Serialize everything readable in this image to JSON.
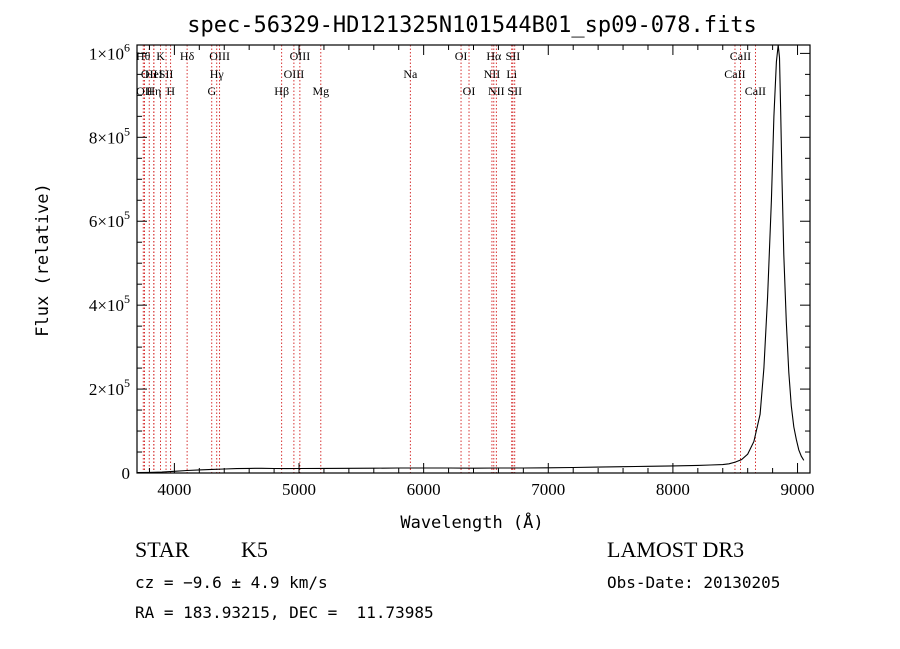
{
  "chart_data": {
    "type": "line",
    "title": "spec-56329-HD121325N101544B01_sp09-078.fits",
    "xlabel": "Wavelength (Å)",
    "ylabel": "Flux (relative)",
    "xlim": [
      3700,
      9100
    ],
    "ylim": [
      0,
      1020000
    ],
    "x_ticks": [
      4000,
      5000,
      6000,
      7000,
      8000,
      9000
    ],
    "x_tick_labels": [
      "4000",
      "5000",
      "6000",
      "7000",
      "8000",
      "9000"
    ],
    "y_ticks": [
      {
        "value": 0,
        "mantissa": "0",
        "exp": ""
      },
      {
        "value": 200000,
        "mantissa": "2×10",
        "exp": "5"
      },
      {
        "value": 400000,
        "mantissa": "4×10",
        "exp": "5"
      },
      {
        "value": 600000,
        "mantissa": "6×10",
        "exp": "5"
      },
      {
        "value": 800000,
        "mantissa": "8×10",
        "exp": "5"
      },
      {
        "value": 1000000,
        "mantissa": "1×10",
        "exp": "6"
      }
    ],
    "series": [
      {
        "values_x": [
          3700,
          3800,
          3900,
          4000,
          4100,
          4200,
          4300,
          4400,
          4500,
          4600,
          4700,
          4800,
          4900,
          5000,
          5200,
          5400,
          5600,
          5800,
          6000,
          6200,
          6400,
          6600,
          6800,
          7000,
          7200,
          7400,
          7600,
          7800,
          8000,
          8200,
          8300,
          8400,
          8450,
          8500,
          8550,
          8600,
          8650,
          8700,
          8730,
          8760,
          8790,
          8810,
          8830,
          8845,
          8855,
          8865,
          8875,
          8890,
          8910,
          8930,
          8950,
          8970,
          8990,
          9010,
          9030,
          9050
        ],
        "values_y": [
          1000,
          1500,
          2500,
          4000,
          6000,
          7500,
          8500,
          9500,
          10500,
          11000,
          11200,
          10800,
          10500,
          10800,
          11000,
          11200,
          11500,
          12000,
          12000,
          11800,
          11500,
          11800,
          12000,
          12500,
          13000,
          14000,
          15000,
          16000,
          17000,
          18000,
          19000,
          20000,
          22000,
          26000,
          32000,
          45000,
          75000,
          140000,
          250000,
          420000,
          650000,
          850000,
          980000,
          1020000,
          990000,
          860000,
          700000,
          520000,
          360000,
          240000,
          160000,
          110000,
          80000,
          55000,
          40000,
          30000
        ]
      }
    ],
    "lines": [
      {
        "x": 3750,
        "row": 0,
        "label": "Hθ"
      },
      {
        "x": 3798,
        "row": 1,
        "label": "OII"
      },
      {
        "x": 3760,
        "row": 2,
        "label": "OII"
      },
      {
        "x": 3835,
        "row": 1,
        "label": "HeI"
      },
      {
        "x": 3835,
        "row": 2,
        "label": "Hη"
      },
      {
        "x": 3889,
        "row": 0,
        "label": "K"
      },
      {
        "x": 3933,
        "row": 1,
        "label": "SII"
      },
      {
        "x": 3970,
        "row": 2,
        "label": "H"
      },
      {
        "x": 4102,
        "row": 0,
        "label": "Hδ"
      },
      {
        "x": 4300,
        "row": 2,
        "label": "G"
      },
      {
        "x": 4340,
        "row": 1,
        "label": "Hγ"
      },
      {
        "x": 4363,
        "row": 0,
        "label": "OIII"
      },
      {
        "x": 4861,
        "row": 2,
        "label": "Hβ"
      },
      {
        "x": 4959,
        "row": 1,
        "label": "OIII"
      },
      {
        "x": 5007,
        "row": 0,
        "label": "OIII"
      },
      {
        "x": 5175,
        "row": 2,
        "label": "Mg"
      },
      {
        "x": 5893,
        "row": 1,
        "label": "Na"
      },
      {
        "x": 6300,
        "row": 0,
        "label": "OI"
      },
      {
        "x": 6364,
        "row": 2,
        "label": "OI"
      },
      {
        "x": 6548,
        "row": 1,
        "label": "NII"
      },
      {
        "x": 6563,
        "row": 0,
        "label": "Hα"
      },
      {
        "x": 6583,
        "row": 2,
        "label": "NII"
      },
      {
        "x": 6707,
        "row": 1,
        "label": "Li"
      },
      {
        "x": 6716,
        "row": 0,
        "label": "SII"
      },
      {
        "x": 6731,
        "row": 2,
        "label": "SII"
      },
      {
        "x": 8498,
        "row": 1,
        "label": "CaII"
      },
      {
        "x": 8542,
        "row": 0,
        "label": "CaII"
      },
      {
        "x": 8662,
        "row": 2,
        "label": "CaII"
      }
    ],
    "line_color": "#cc0000",
    "spectrum_color": "#000000"
  },
  "info": {
    "object_class": "STAR",
    "subclass": "K5",
    "velocity": "cz = −9.6 ± 4.9 km/s",
    "coords": "RA = 183.93215, DEC =  11.73985",
    "survey": "LAMOST DR3",
    "obs_date": "Obs-Date: 20130205"
  }
}
